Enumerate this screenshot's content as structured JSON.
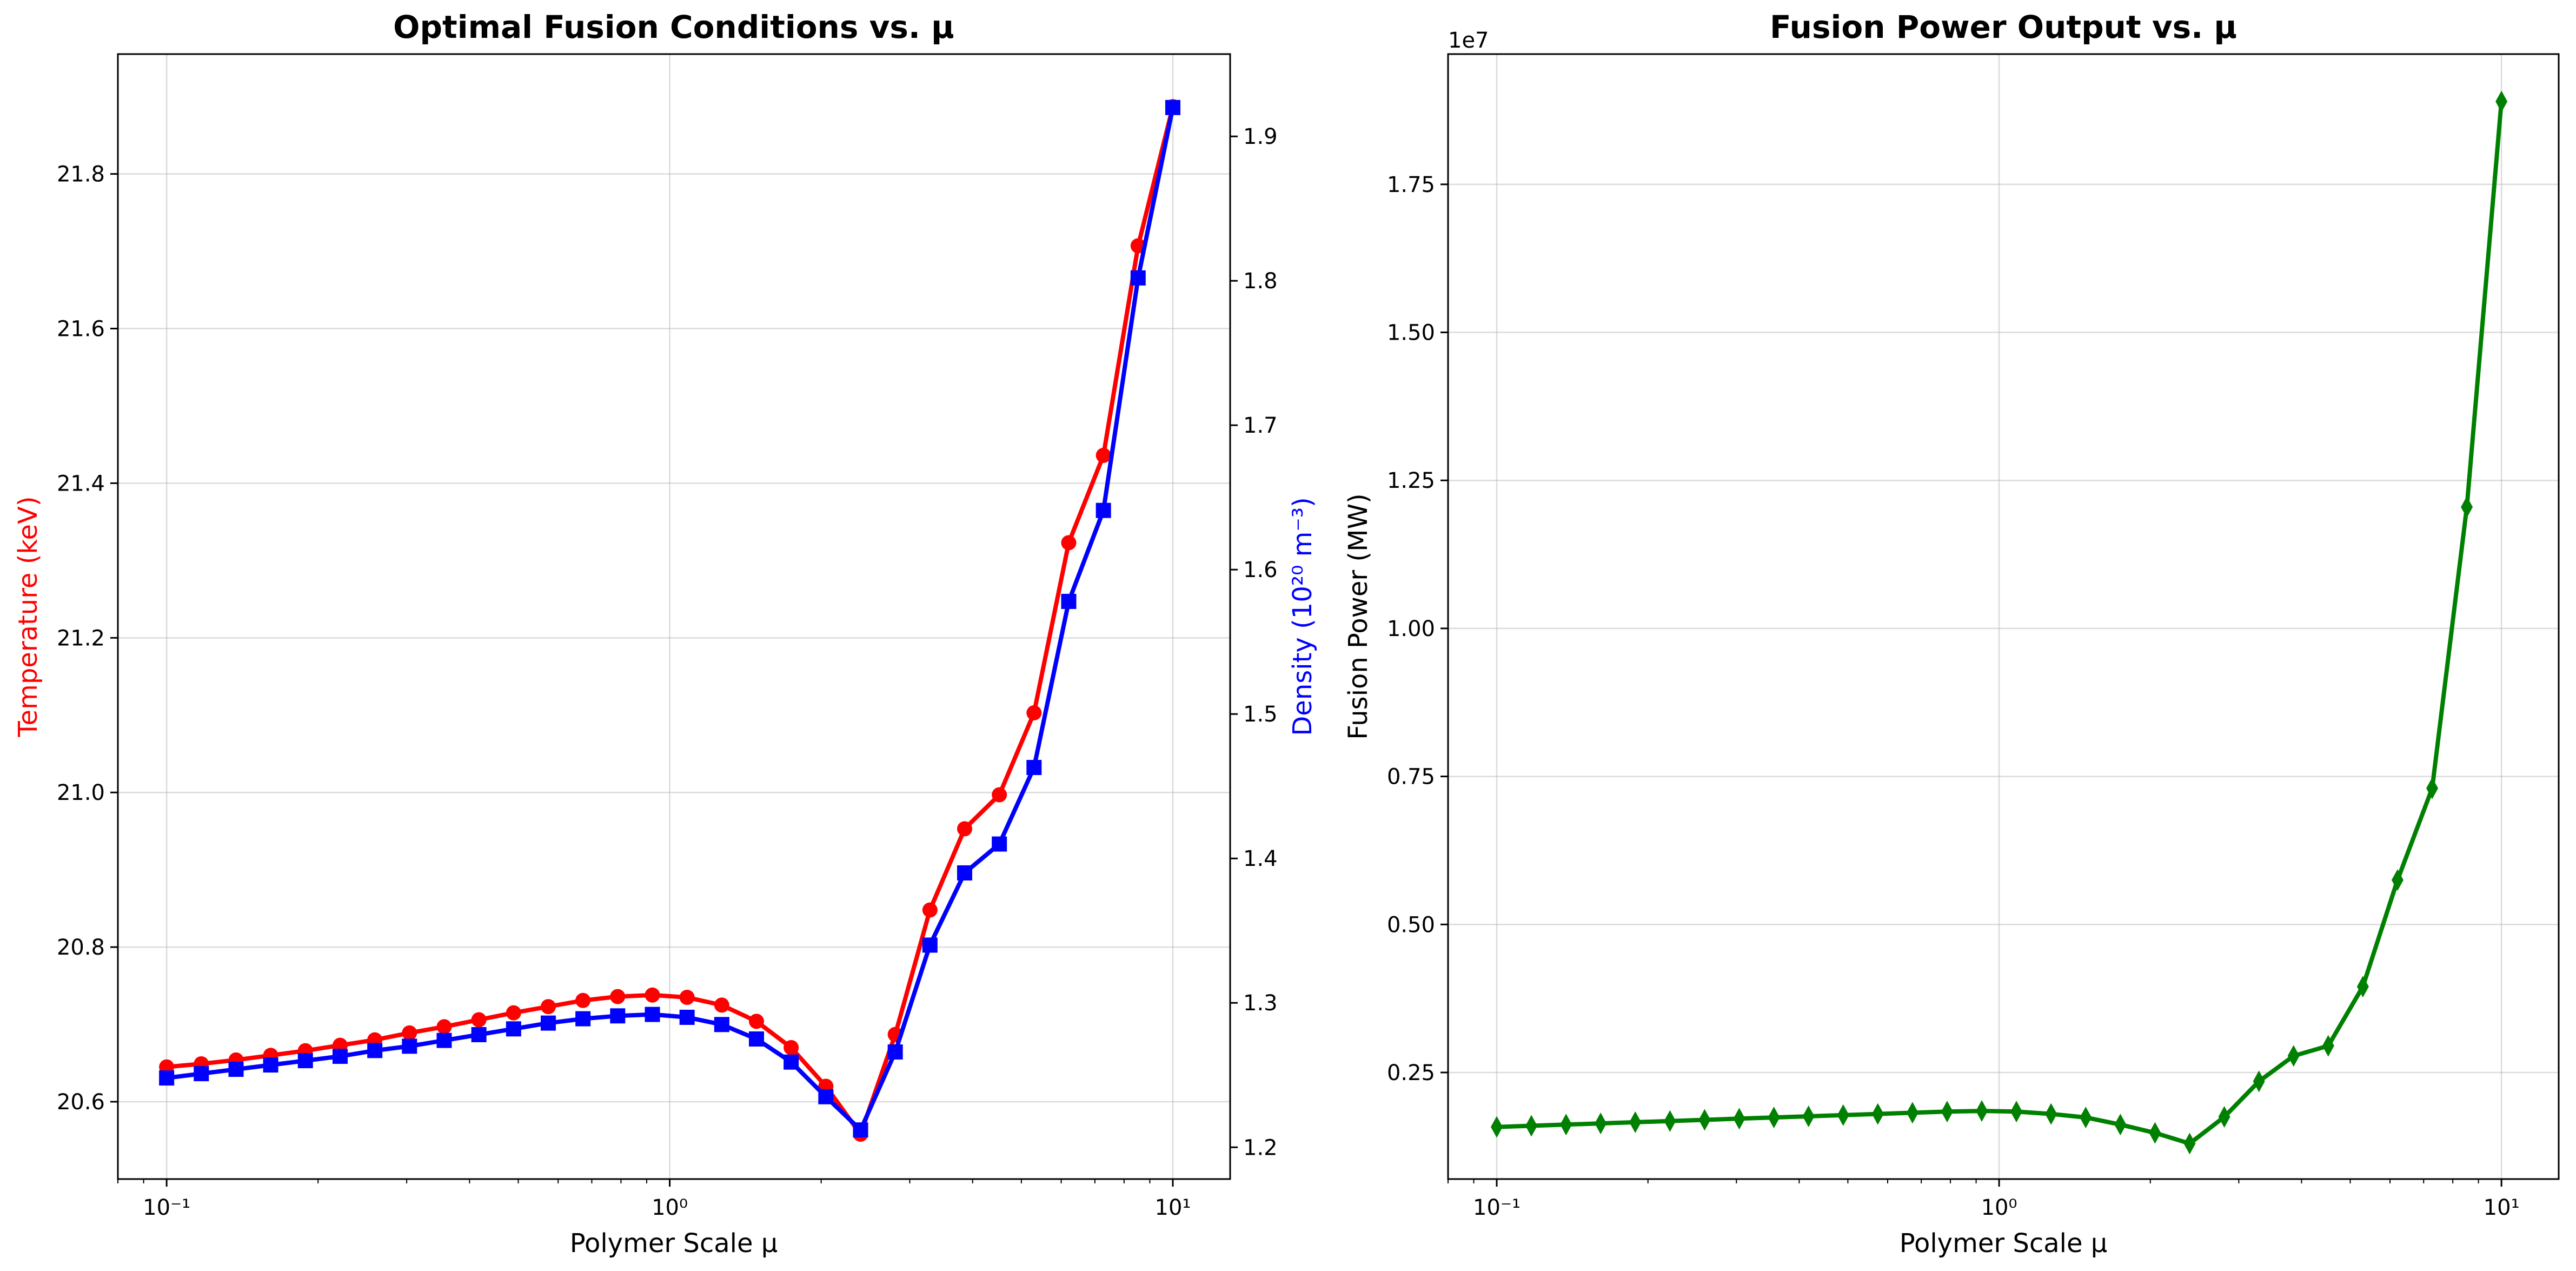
{
  "chart_data": [
    {
      "type": "line",
      "title": "Optimal Fusion Conditions vs. μ",
      "xlabel": "Polymer Scale μ",
      "ylabel": "Temperature (keV)",
      "y2label": "Density (10²⁰ m⁻³)",
      "xscale": "log",
      "xlim": [
        0.08,
        13
      ],
      "ylim": [
        20.5,
        21.955
      ],
      "y2lim": [
        1.178,
        1.957
      ],
      "grid": true,
      "xticks": [
        0.1,
        1,
        10
      ],
      "xtick_labels": [
        "10⁻¹",
        "10⁰",
        "10¹"
      ],
      "yticks": [
        20.6,
        20.8,
        21.0,
        21.2,
        21.4,
        21.6,
        21.8
      ],
      "ytick_labels": [
        "20.6",
        "20.8",
        "21.0",
        "21.2",
        "21.4",
        "21.6",
        "21.8"
      ],
      "y2ticks": [
        1.2,
        1.3,
        1.4,
        1.5,
        1.6,
        1.7,
        1.8,
        1.9
      ],
      "y2tick_labels": [
        "1.2",
        "1.3",
        "1.4",
        "1.5",
        "1.6",
        "1.7",
        "1.8",
        "1.9"
      ],
      "x": [
        0.1,
        0.1172,
        0.1374,
        0.161,
        0.1887,
        0.2212,
        0.2593,
        0.3039,
        0.3562,
        0.4175,
        0.4894,
        0.5736,
        0.6723,
        0.788,
        0.9237,
        1.0826,
        1.269,
        1.4874,
        1.7433,
        2.0434,
        2.395,
        2.8072,
        3.2903,
        3.8566,
        4.5204,
        5.2983,
        6.2102,
        7.279,
        8.5317,
        10.0
      ],
      "series": [
        {
          "axis": "left",
          "color": "#ff0000",
          "marker": "circle",
          "values": [
            20.645,
            20.649,
            20.654,
            20.66,
            20.666,
            20.673,
            20.68,
            20.689,
            20.697,
            20.706,
            20.715,
            20.723,
            20.731,
            20.736,
            20.738,
            20.735,
            20.725,
            20.704,
            20.67,
            20.62,
            20.558,
            20.687,
            20.848,
            20.953,
            20.997,
            21.103,
            21.323,
            21.436,
            21.707,
            21.887
          ]
        },
        {
          "axis": "right",
          "color": "#0000ff",
          "marker": "square",
          "values": [
            1.248,
            1.251,
            1.254,
            1.257,
            1.26,
            1.263,
            1.267,
            1.27,
            1.274,
            1.278,
            1.282,
            1.286,
            1.289,
            1.291,
            1.292,
            1.29,
            1.285,
            1.275,
            1.259,
            1.235,
            1.212,
            1.266,
            1.34,
            1.39,
            1.41,
            1.463,
            1.578,
            1.641,
            1.802,
            1.92
          ]
        }
      ]
    },
    {
      "type": "line",
      "title": "Fusion Power Output vs. μ",
      "xlabel": "Polymer Scale μ",
      "ylabel": "Fusion Power (MW)",
      "offset_text": "1e7",
      "xscale": "log",
      "xlim": [
        0.08,
        13
      ],
      "ylim": [
        700000,
        19700000
      ],
      "grid": true,
      "xticks": [
        0.1,
        1,
        10
      ],
      "xtick_labels": [
        "10⁻¹",
        "10⁰",
        "10¹"
      ],
      "yticks": [
        2500000,
        5000000,
        7500000,
        10000000,
        12500000,
        15000000,
        17500000
      ],
      "ytick_labels": [
        "0.25",
        "0.50",
        "0.75",
        "1.00",
        "1.25",
        "1.50",
        "1.75"
      ],
      "x": [
        0.1,
        0.1172,
        0.1374,
        0.161,
        0.1887,
        0.2212,
        0.2593,
        0.3039,
        0.3562,
        0.4175,
        0.4894,
        0.5736,
        0.6723,
        0.788,
        0.9237,
        1.0826,
        1.269,
        1.4874,
        1.7433,
        2.0434,
        2.395,
        2.8072,
        3.2903,
        3.8566,
        4.5204,
        5.2983,
        6.2102,
        7.279,
        8.5317,
        10.0
      ],
      "series": [
        {
          "color": "#008000",
          "marker": "diamond",
          "values": [
            1580000,
            1600000,
            1620000,
            1640000,
            1660000,
            1680000,
            1700000,
            1720000,
            1740000,
            1760000,
            1780000,
            1800000,
            1820000,
            1840000,
            1850000,
            1840000,
            1800000,
            1740000,
            1620000,
            1480000,
            1300000,
            1750000,
            2350000,
            2780000,
            2950000,
            3950000,
            5750000,
            7300000,
            12050000,
            18900000
          ]
        }
      ]
    }
  ]
}
